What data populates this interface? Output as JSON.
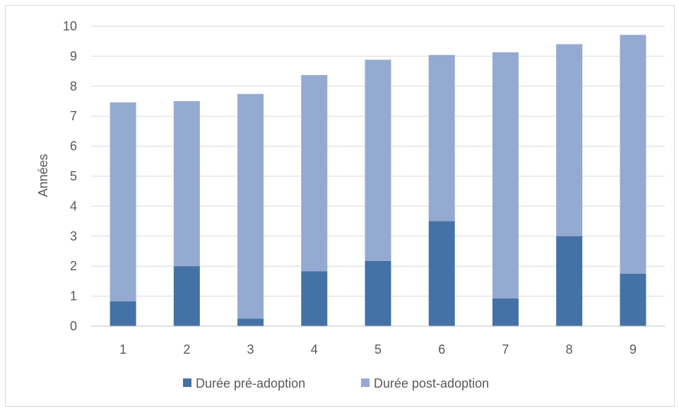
{
  "chart_data": {
    "type": "bar",
    "stacked": true,
    "categories": [
      "1",
      "2",
      "3",
      "4",
      "5",
      "6",
      "7",
      "8",
      "9"
    ],
    "series": [
      {
        "name": "Durée pré-adoption",
        "color": "#4472a6",
        "values": [
          0.83,
          2.0,
          0.25,
          1.83,
          2.17,
          3.5,
          0.92,
          3.0,
          1.75
        ]
      },
      {
        "name": "Durée post-adoption",
        "color": "#94aad0",
        "values": [
          6.63,
          5.5,
          7.49,
          6.54,
          6.71,
          5.54,
          8.21,
          6.4,
          7.96
        ]
      }
    ],
    "ylabel": "Années",
    "ylim": [
      0,
      10
    ],
    "yticks": [
      "0",
      "1",
      "2",
      "3",
      "4",
      "5",
      "6",
      "7",
      "8",
      "9",
      "10"
    ],
    "grid": true,
    "legend_position": "bottom"
  }
}
